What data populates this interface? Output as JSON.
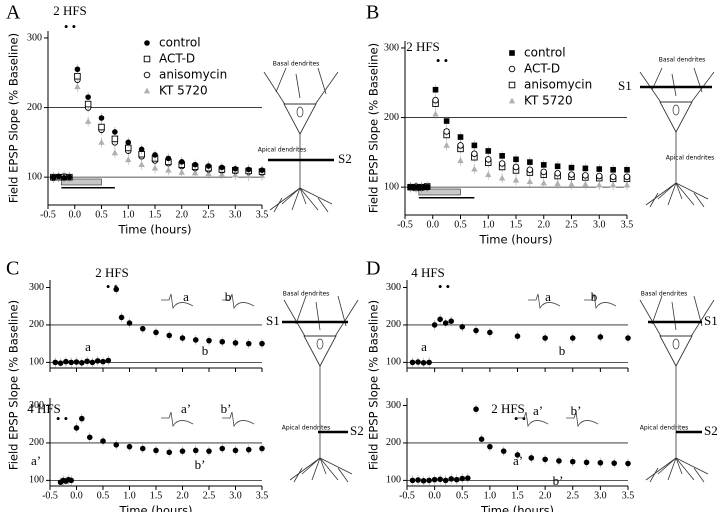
{
  "chart_data": [
    {
      "type": "scatter",
      "panel": "A",
      "xlabel": "Time (hours)",
      "ylabel": "Field EPSP Slope (% Baseline)",
      "xlim": [
        -0.5,
        3.5
      ],
      "xticks": [
        -0.5,
        {
          "value": 0,
          "label": "0.0"
        },
        0.5,
        {
          "value": 1,
          "label": "1.0"
        },
        1.5,
        {
          "value": 2,
          "label": "2.0"
        },
        2.5,
        {
          "value": 3,
          "label": "3.0"
        },
        3.5
      ],
      "ylim": [
        60,
        310
      ],
      "yticks": [
        100,
        200,
        300
      ],
      "hlines": [
        100,
        200
      ],
      "legend": "top-right",
      "annotations": [
        "2 HFS"
      ],
      "drug_periods": [
        {
          "start": -0.25,
          "end": 0.5,
          "color": "#c8c8c8"
        },
        {
          "start": -0.25,
          "end": 0.75,
          "color": "#000000"
        }
      ],
      "x": [
        -0.4,
        -0.3,
        -0.2,
        -0.1,
        0.05,
        0.25,
        0.5,
        0.75,
        1,
        1.25,
        1.5,
        1.75,
        2,
        2.25,
        2.5,
        2.75,
        3,
        3.25,
        3.5
      ],
      "series": [
        {
          "name": "control",
          "color": "#000000",
          "marker": "filled-circle",
          "values": [
            100,
            101,
            99,
            100,
            255,
            215,
            185,
            165,
            150,
            140,
            132,
            127,
            122,
            118,
            116,
            114,
            112,
            111,
            110
          ]
        },
        {
          "name": "ACT-D",
          "color": "#000000",
          "marker": "open-square",
          "values": [
            100,
            100,
            100,
            100,
            245,
            205,
            172,
            155,
            142,
            133,
            127,
            122,
            118,
            115,
            113,
            111,
            110,
            109,
            108
          ]
        },
        {
          "name": "anisomycin",
          "color": "#000000",
          "marker": "open-circle",
          "values": [
            99,
            100,
            101,
            100,
            240,
            200,
            168,
            150,
            138,
            130,
            124,
            120,
            116,
            113,
            111,
            110,
            109,
            108,
            107
          ]
        },
        {
          "name": "KT 5720",
          "color": "#b0b0b0",
          "marker": "triangle",
          "values": [
            100,
            100,
            100,
            100,
            230,
            180,
            150,
            135,
            125,
            118,
            113,
            110,
            107,
            106,
            105,
            104,
            103,
            102,
            102
          ]
        }
      ]
    },
    {
      "type": "scatter",
      "panel": "B",
      "xlabel": "Time (hours)",
      "ylabel": "Field EPSP Slope (% Baseline)",
      "xlim": [
        -0.5,
        3.5
      ],
      "xticks": [
        -0.5,
        {
          "value": 0,
          "label": "0.0"
        },
        0.5,
        {
          "value": 1,
          "label": "1.0"
        },
        1.5,
        {
          "value": 2,
          "label": "2.0"
        },
        2.5,
        {
          "value": 3,
          "label": "3.0"
        },
        3.5
      ],
      "ylim": [
        60,
        310
      ],
      "yticks": [
        100,
        200,
        300
      ],
      "hlines": [
        100,
        200
      ],
      "legend": "top-right",
      "annotations": [
        "2 HFS"
      ],
      "drug_periods": [
        {
          "start": -0.25,
          "end": 0.5,
          "color": "#c8c8c8"
        },
        {
          "start": -0.25,
          "end": 0.75,
          "color": "#000000"
        }
      ],
      "x": [
        -0.4,
        -0.3,
        -0.2,
        -0.1,
        0.05,
        0.25,
        0.5,
        0.75,
        1,
        1.25,
        1.5,
        1.75,
        2,
        2.25,
        2.5,
        2.75,
        3,
        3.25,
        3.5
      ],
      "series": [
        {
          "name": "control",
          "color": "#000000",
          "marker": "filled-square",
          "values": [
            100,
            100,
            100,
            100,
            240,
            195,
            172,
            160,
            152,
            145,
            140,
            136,
            132,
            130,
            128,
            127,
            126,
            125,
            125
          ]
        },
        {
          "name": "ACT-D",
          "color": "#000000",
          "marker": "open-circle",
          "values": [
            100,
            101,
            99,
            100,
            225,
            180,
            160,
            148,
            140,
            134,
            129,
            125,
            122,
            120,
            118,
            117,
            116,
            115,
            115
          ]
        },
        {
          "name": "anisomycin",
          "color": "#000000",
          "marker": "open-square",
          "values": [
            100,
            99,
            100,
            101,
            220,
            175,
            155,
            143,
            135,
            129,
            124,
            121,
            118,
            116,
            115,
            114,
            113,
            112,
            112
          ]
        },
        {
          "name": "KT 5720",
          "color": "#b0b0b0",
          "marker": "triangle",
          "values": [
            100,
            100,
            100,
            100,
            205,
            160,
            138,
            126,
            118,
            113,
            110,
            108,
            106,
            105,
            104,
            104,
            103,
            103,
            103
          ]
        }
      ]
    },
    {
      "type": "scatter",
      "panel": "C",
      "ylabel": "Field EPSP Slope (% Baseline)",
      "xlim": [
        -0.5,
        3.5
      ],
      "xticks": [
        -0.5,
        0,
        0.5,
        1,
        1.5,
        2,
        2.5,
        3,
        3.5
      ],
      "ylim": [
        85,
        320
      ],
      "yticks": [
        100,
        200,
        300
      ],
      "hlines": [
        100,
        200
      ],
      "annotations": [
        "2 HFS",
        "a",
        "b",
        "a",
        "b"
      ],
      "x": [
        -0.4,
        -0.3,
        -0.2,
        -0.1,
        0,
        0.1,
        0.2,
        0.3,
        0.4,
        0.5,
        0.6,
        0.75,
        0.85,
        1,
        1.25,
        1.5,
        1.75,
        2,
        2.25,
        2.5,
        2.75,
        3,
        3.25,
        3.5
      ],
      "series": [
        {
          "color": "#000000",
          "marker": "filled-circle",
          "values": [
            100,
            98,
            102,
            100,
            101,
            99,
            103,
            100,
            104,
            102,
            105,
            295,
            220,
            205,
            190,
            180,
            172,
            165,
            160,
            158,
            155,
            152,
            150,
            150
          ]
        }
      ]
    },
    {
      "type": "scatter",
      "xlabel": "Time (hours)",
      "xlim": [
        -0.5,
        3.5
      ],
      "xticks": [
        -0.5,
        {
          "value": 0,
          "label": "0.0"
        },
        0.5,
        {
          "value": 1,
          "label": "1.0"
        },
        1.5,
        {
          "value": 2,
          "label": "2.0"
        },
        2.5,
        {
          "value": 3,
          "label": "3.0"
        },
        3.5
      ],
      "ylim": [
        85,
        320
      ],
      "yticks": [
        100,
        200,
        300
      ],
      "hlines": [
        100,
        200
      ],
      "annotations": [
        "4 HFS",
        "a’",
        "b’",
        "a’",
        "b’"
      ],
      "x": [
        -0.3,
        -0.25,
        -0.2,
        -0.15,
        -0.1,
        0,
        0.1,
        0.25,
        0.5,
        0.75,
        1,
        1.25,
        1.5,
        1.75,
        2,
        2.25,
        2.5,
        2.75,
        3,
        3.25,
        3.5
      ],
      "series": [
        {
          "color": "#000000",
          "marker": "filled-circle",
          "values": [
            95,
            100,
            98,
            102,
            100,
            240,
            265,
            215,
            205,
            195,
            190,
            185,
            180,
            175,
            178,
            180,
            178,
            185,
            180,
            182,
            185
          ]
        }
      ]
    },
    {
      "type": "scatter",
      "panel": "D",
      "ylabel": "Field EPSP Slope (% Baseline)",
      "xlim": [
        -0.5,
        3.5
      ],
      "xticks": [
        -0.5,
        0,
        0.5,
        1,
        1.5,
        2,
        2.5,
        3,
        3.5
      ],
      "ylim": [
        85,
        320
      ],
      "yticks": [
        100,
        200,
        300
      ],
      "hlines": [
        100,
        200
      ],
      "annotations": [
        "4 HFS",
        "a",
        "b",
        "a",
        "b"
      ],
      "x": [
        -0.4,
        -0.3,
        -0.2,
        -0.1,
        0,
        0.1,
        0.2,
        0.3,
        0.5,
        0.75,
        1,
        1.5,
        2,
        2.5,
        3,
        3.5
      ],
      "series": [
        {
          "color": "#000000",
          "marker": "filled-circle",
          "values": [
            100,
            101,
            99,
            100,
            200,
            215,
            205,
            210,
            195,
            185,
            180,
            170,
            165,
            165,
            168,
            165
          ]
        }
      ]
    },
    {
      "type": "scatter",
      "xlabel": "Time (hours)",
      "xlim": [
        -0.5,
        3.5
      ],
      "xticks": [
        -0.5,
        {
          "value": 0,
          "label": "0.0"
        },
        0.5,
        {
          "value": 1,
          "label": "1.0"
        },
        1.5,
        {
          "value": 2,
          "label": "2.0"
        },
        2.5,
        {
          "value": 3,
          "label": "3.0"
        },
        3.5
      ],
      "ylim": [
        85,
        320
      ],
      "yticks": [
        100,
        200,
        300
      ],
      "hlines": [
        100,
        200
      ],
      "annotations": [
        "2 HFS",
        "a’",
        "b’",
        "a’",
        "b’"
      ],
      "x": [
        -0.4,
        -0.3,
        -0.2,
        -0.1,
        0,
        0.1,
        0.2,
        0.3,
        0.4,
        0.5,
        0.6,
        0.75,
        0.85,
        1,
        1.25,
        1.5,
        1.75,
        2,
        2.25,
        2.5,
        2.75,
        3,
        3.25,
        3.5
      ],
      "series": [
        {
          "color": "#000000",
          "marker": "filled-circle",
          "values": [
            100,
            101,
            99,
            100,
            102,
            103,
            100,
            104,
            102,
            105,
            106,
            290,
            210,
            190,
            178,
            168,
            160,
            156,
            152,
            150,
            148,
            147,
            146,
            145
          ]
        }
      ]
    }
  ],
  "diagrams": [
    {
      "basal": "Basal dendrites",
      "apical": "Apical dendrites",
      "electrodes": [
        "S2"
      ]
    },
    {
      "basal": "Basal dendrites",
      "apical": "Apical dendrites",
      "electrodes": [
        "S1"
      ]
    },
    {
      "basal": "Basal dendrites",
      "apical": "Apical dendrites",
      "electrodes": [
        "S1",
        "S2"
      ]
    },
    {
      "basal": "Basal dendrites",
      "apical": "Apical dendrites",
      "electrodes": [
        "S1",
        "S2"
      ]
    }
  ]
}
